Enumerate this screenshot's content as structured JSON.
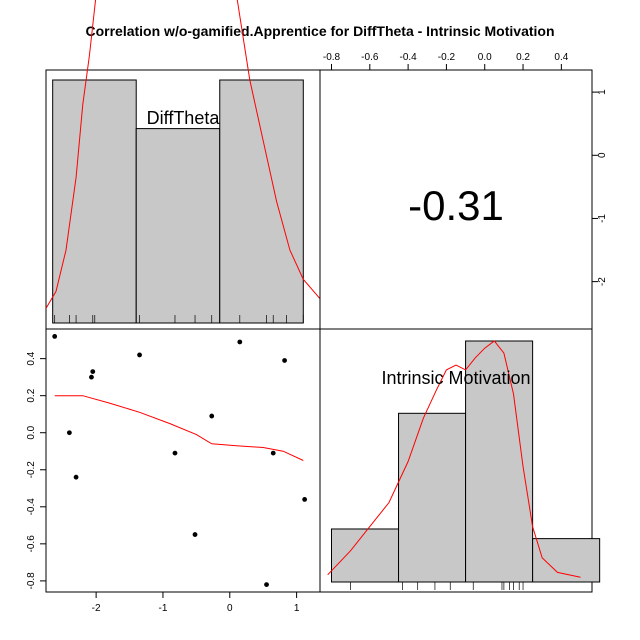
{
  "chart_data": {
    "type": "scatter-matrix",
    "title": "Correlation w/o-gamified.Apprentice for DiffTheta - Intrinsic Motivation",
    "variables": [
      "DiffTheta",
      "Intrinsic Motivation"
    ],
    "correlation_label": "-0.31",
    "colors": {
      "bar_fill": "#c8c8c8",
      "density": "#ff0000",
      "frame": "#000000",
      "points": "#000000"
    },
    "axes": {
      "difftheta_ticks": [
        -2,
        -1,
        0,
        1
      ],
      "difftheta_tick_labels": [
        "-2",
        "-1",
        "0",
        "1"
      ],
      "difftheta_range": [
        -2.75,
        1.35
      ],
      "intrinsic_ticks": [
        -0.8,
        -0.6,
        -0.4,
        -0.2,
        0.0,
        0.2,
        0.4
      ],
      "intrinsic_tick_labels": [
        "-0.8",
        "-0.6",
        "-0.4",
        "-0.2",
        "0.0",
        "0.2",
        "0.4"
      ],
      "intrinsic_range": [
        -0.86,
        0.56
      ]
    },
    "histogram_difftheta": {
      "breaks": [
        -2.65,
        -1.4,
        -0.15,
        1.1
      ],
      "heights": [
        1.0,
        0.8,
        1.0
      ],
      "rug": [
        -2.62,
        -2.4,
        -2.3,
        -2.05,
        -2.02,
        -1.35,
        -0.82,
        -0.52,
        -0.27,
        0.15,
        0.55,
        0.65,
        0.85,
        1.1
      ],
      "density": [
        [
          -2.75,
          0.06
        ],
        [
          -2.6,
          0.13
        ],
        [
          -2.45,
          0.3
        ],
        [
          -2.3,
          0.6
        ],
        [
          -2.2,
          0.9
        ],
        [
          -2.1,
          1.1
        ],
        [
          -1.9,
          1.6
        ],
        [
          -1.7,
          2.1
        ],
        [
          -1.5,
          2.5
        ],
        [
          -1.3,
          2.7
        ],
        [
          -1.0,
          2.75
        ],
        [
          -0.7,
          2.7
        ],
        [
          -0.5,
          2.5
        ],
        [
          -0.3,
          2.2
        ],
        [
          -0.1,
          1.8
        ],
        [
          0.1,
          1.35
        ],
        [
          0.3,
          1.0
        ],
        [
          0.5,
          0.75
        ],
        [
          0.7,
          0.5
        ],
        [
          0.9,
          0.3
        ],
        [
          1.1,
          0.18
        ],
        [
          1.35,
          0.1
        ]
      ]
    },
    "histogram_intrinsic": {
      "breaks": [
        -0.8,
        -0.45,
        -0.1,
        0.25,
        0.6
      ],
      "heights": [
        0.22,
        0.7,
        1.0,
        0.18
      ],
      "rug": [
        -0.7,
        -0.43,
        -0.35,
        -0.26,
        -0.18,
        -0.06,
        0.09,
        0.1,
        0.13,
        0.15,
        0.18,
        0.2
      ],
      "density": [
        [
          -0.82,
          0.03
        ],
        [
          -0.7,
          0.13
        ],
        [
          -0.6,
          0.23
        ],
        [
          -0.5,
          0.33
        ],
        [
          -0.4,
          0.5
        ],
        [
          -0.32,
          0.68
        ],
        [
          -0.25,
          0.8
        ],
        [
          -0.2,
          0.88
        ],
        [
          -0.15,
          0.9
        ],
        [
          -0.1,
          0.88
        ],
        [
          -0.05,
          0.93
        ],
        [
          0.0,
          0.97
        ],
        [
          0.05,
          1.0
        ],
        [
          0.1,
          0.95
        ],
        [
          0.15,
          0.78
        ],
        [
          0.2,
          0.48
        ],
        [
          0.25,
          0.23
        ],
        [
          0.3,
          0.1
        ],
        [
          0.38,
          0.04
        ],
        [
          0.5,
          0.02
        ]
      ]
    },
    "scatter": {
      "x": [
        -2.62,
        -2.05,
        -2.07,
        -1.35,
        0.15,
        0.82,
        -2.4,
        -0.27,
        -0.82,
        0.65,
        -2.3,
        1.12,
        -0.52,
        0.55
      ],
      "y": [
        0.52,
        0.33,
        0.3,
        0.42,
        0.49,
        0.39,
        0.0,
        0.09,
        -0.11,
        -0.11,
        -0.24,
        -0.36,
        -0.55,
        -0.82
      ]
    },
    "scatter_smooth": {
      "x": [
        -2.62,
        -2.2,
        -1.8,
        -1.35,
        -0.9,
        -0.5,
        -0.27,
        0.1,
        0.5,
        0.8,
        1.1
      ],
      "y": [
        0.2,
        0.2,
        0.16,
        0.11,
        0.05,
        -0.01,
        -0.06,
        -0.07,
        -0.08,
        -0.1,
        -0.15
      ]
    }
  }
}
